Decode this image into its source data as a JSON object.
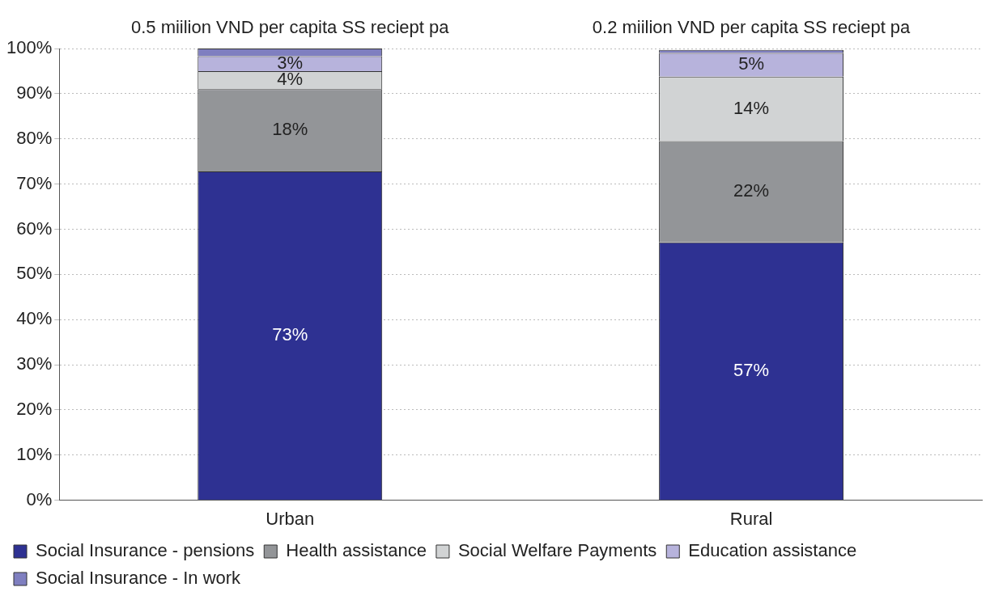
{
  "chart_data": {
    "type": "bar",
    "stacked": true,
    "categories": [
      "Urban",
      "Rural"
    ],
    "series": [
      {
        "name": "Social Insurance - pensions",
        "color": "#2e3192",
        "values": [
          72.8,
          57.1
        ],
        "value_labels": [
          "73%",
          "57%"
        ]
      },
      {
        "name": "Health assistance",
        "color": "#939598",
        "values": [
          18.2,
          22.4
        ],
        "value_labels": [
          "18%",
          "22%"
        ]
      },
      {
        "name": "Social Welfare Payments",
        "color": "#d1d3d4",
        "values": [
          4.0,
          14.3
        ],
        "value_labels": [
          "4%",
          "14%"
        ]
      },
      {
        "name": "Education assistance",
        "color": "#b7b3dc",
        "values": [
          3.3,
          5.2
        ],
        "value_labels": [
          "3%",
          "5%"
        ]
      },
      {
        "name": "Social Insurance - In work",
        "color": "#7f7fc0",
        "values": [
          1.7,
          0.7
        ],
        "value_labels": [
          null,
          null
        ]
      }
    ],
    "annotations": [
      "0.5 miilion VND per capita SS reciept pa",
      "0.2 miilion VND per capita SS reciept pa"
    ],
    "ylim": [
      0,
      100
    ],
    "yticks": [
      {
        "value": 0,
        "label": "0%"
      },
      {
        "value": 10,
        "label": "10%"
      },
      {
        "value": 20,
        "label": "20%"
      },
      {
        "value": 30,
        "label": "30%"
      },
      {
        "value": 40,
        "label": "40%"
      },
      {
        "value": 50,
        "label": "50%"
      },
      {
        "value": 60,
        "label": "60%"
      },
      {
        "value": 70,
        "label": "70%"
      },
      {
        "value": 80,
        "label": "80%"
      },
      {
        "value": 90,
        "label": "90%"
      },
      {
        "value": 100,
        "label": "100%"
      }
    ],
    "grid": "y",
    "legend": "bottom"
  }
}
